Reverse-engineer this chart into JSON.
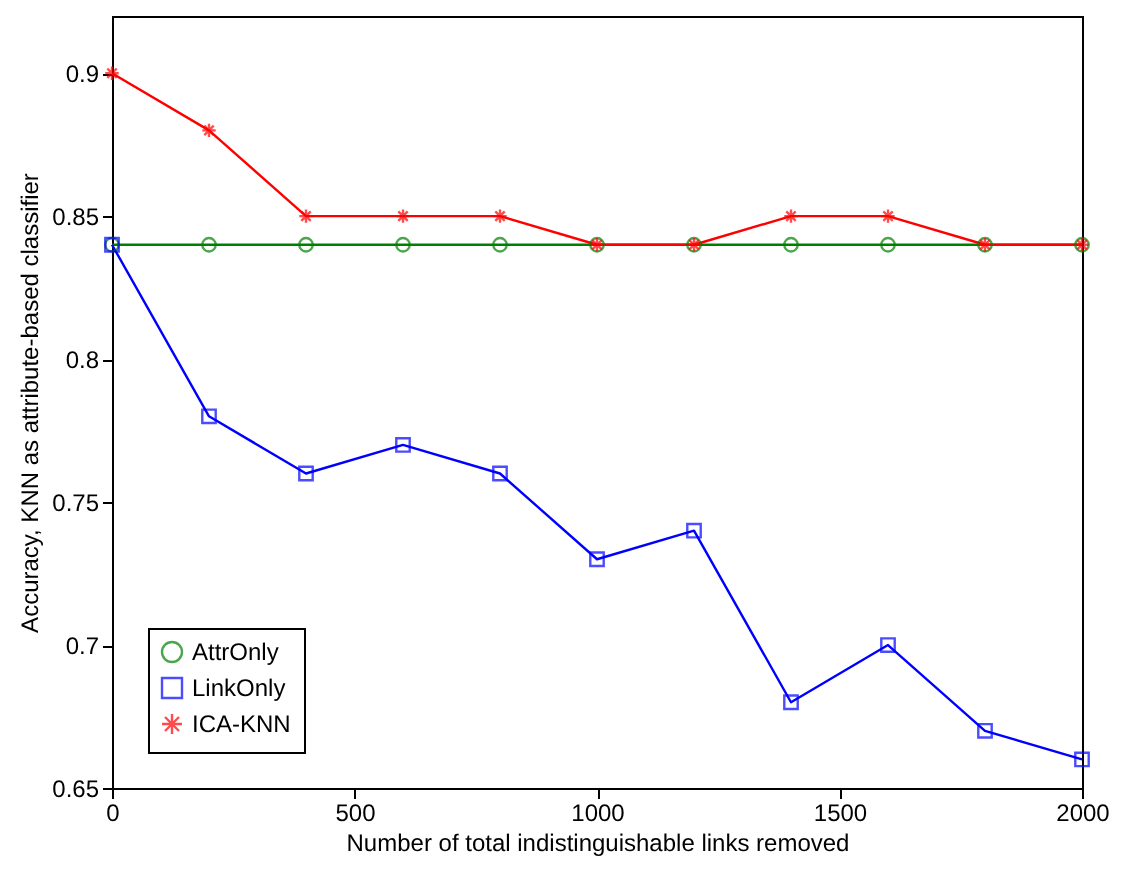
{
  "chart_data": {
    "type": "line",
    "xlabel": "Number of total indistinguishable links removed",
    "ylabel": "Accuracy, KNN as attribute-based classifier",
    "x": [
      0,
      200,
      400,
      600,
      800,
      1000,
      1200,
      1400,
      1600,
      1800,
      2000
    ],
    "series": [
      {
        "name": "AttrOnly",
        "color": "#008000",
        "marker": "circle",
        "values": [
          0.84,
          0.84,
          0.84,
          0.84,
          0.84,
          0.84,
          0.84,
          0.84,
          0.84,
          0.84,
          0.84
        ]
      },
      {
        "name": "LinkOnly",
        "color": "#0000ff",
        "marker": "square",
        "values": [
          0.84,
          0.78,
          0.76,
          0.77,
          0.76,
          0.73,
          0.74,
          0.68,
          0.7,
          0.67,
          0.66
        ]
      },
      {
        "name": "ICA-KNN",
        "color": "#ff0000",
        "marker": "cross",
        "values": [
          0.9,
          0.88,
          0.85,
          0.85,
          0.85,
          0.84,
          0.84,
          0.85,
          0.85,
          0.84,
          0.84
        ]
      }
    ],
    "xlim": [
      0,
      2000
    ],
    "xticks": [
      0,
      500,
      1000,
      1500,
      2000
    ],
    "ylim": [
      0.65,
      0.92
    ],
    "yticks": [
      0.65,
      0.7,
      0.75,
      0.8,
      0.85,
      0.9
    ],
    "grid": false,
    "legend": "bottom left",
    "line_style": "solid"
  }
}
